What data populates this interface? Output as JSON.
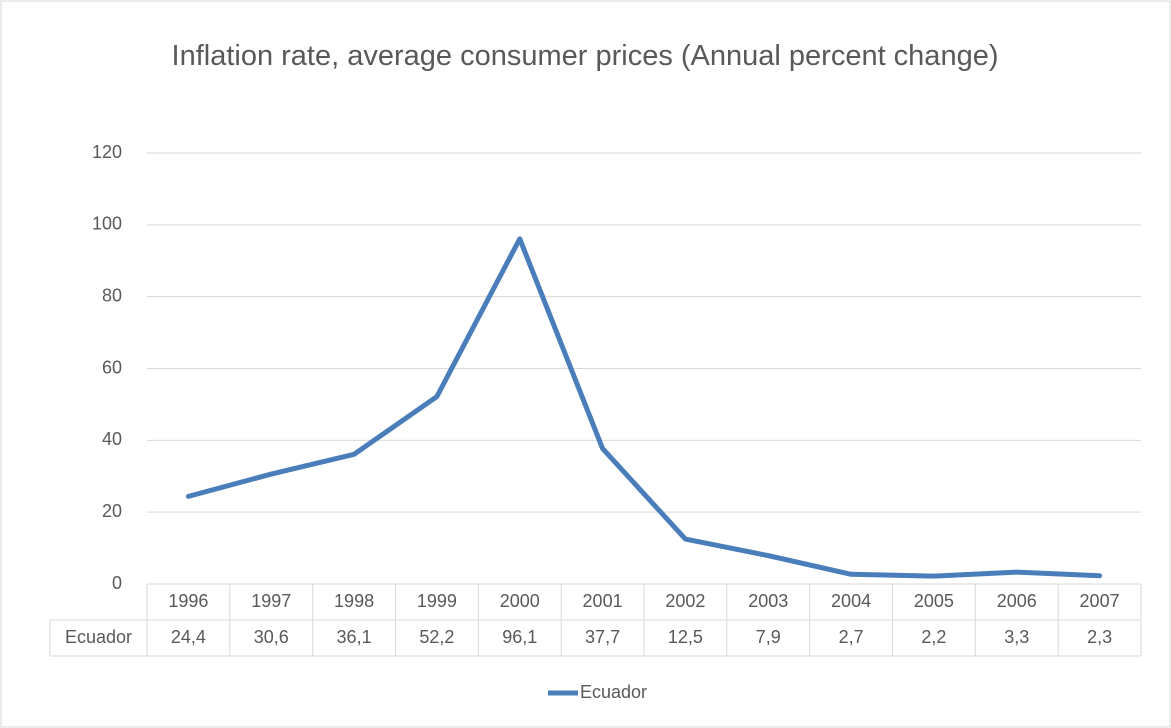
{
  "chart_data": {
    "type": "line",
    "title": "Inflation rate, average consumer prices (Annual percent change)",
    "categories": [
      "1996",
      "1997",
      "1998",
      "1999",
      "2000",
      "2001",
      "2002",
      "2003",
      "2004",
      "2005",
      "2006",
      "2007"
    ],
    "series": [
      {
        "name": "Ecuador",
        "color": "#4a7ebb",
        "values": [
          24.4,
          30.6,
          36.1,
          52.2,
          96.1,
          37.7,
          12.5,
          7.9,
          2.7,
          2.2,
          3.3,
          2.3
        ],
        "value_labels": [
          "24,4",
          "30,6",
          "36,1",
          "52,2",
          "96,1",
          "37,7",
          "12,5",
          "7,9",
          "2,7",
          "2,2",
          "3,3",
          "2,3"
        ]
      }
    ],
    "ylim": [
      0,
      120
    ],
    "yticks": [
      0,
      20,
      40,
      60,
      80,
      100,
      120
    ],
    "grid": true,
    "legend": "bottom"
  }
}
